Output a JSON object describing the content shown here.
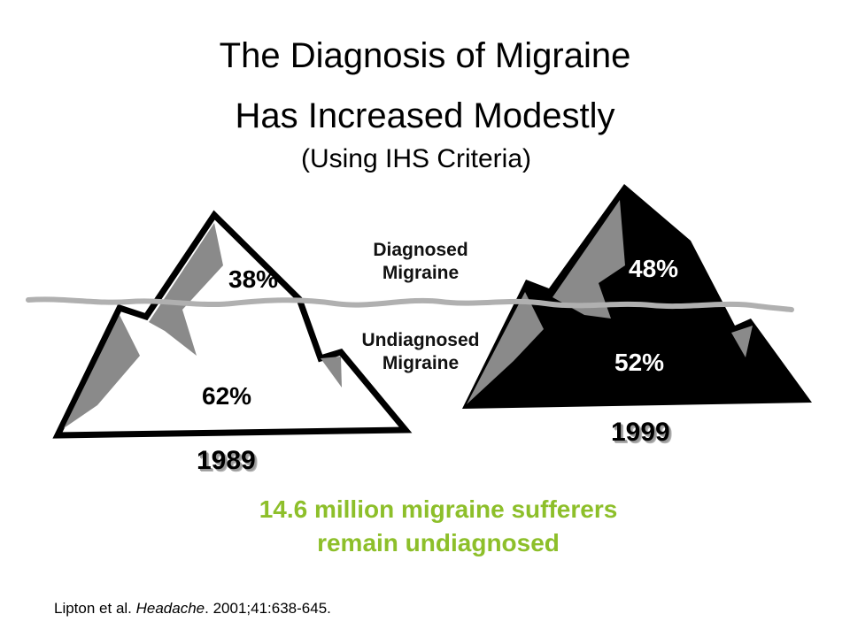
{
  "title": {
    "line1": "The Diagnosis of Migraine",
    "line2": "Has Increased Modestly",
    "subtitle": "(Using IHS Criteria)"
  },
  "labels": {
    "diagnosed": "Diagnosed\nMigraine",
    "undiagnosed": "Undiagnosed\nMigraine"
  },
  "icebergs": [
    {
      "year": "1989",
      "diagnosed_pct": "38%",
      "undiagnosed_pct": "62%",
      "fill_color": "#ffffff"
    },
    {
      "year": "1999",
      "diagnosed_pct": "48%",
      "undiagnosed_pct": "52%",
      "fill_color": "#000000"
    }
  ],
  "highlight": {
    "line1": "14.6 million migraine sufferers",
    "line2": "remain undiagnosed",
    "color": "#8dbf2a"
  },
  "citation": {
    "authors": "Lipton et al. ",
    "journal": "Headache",
    "details": ". 2001;41:638-645."
  },
  "colors": {
    "water_line": "#b0b0b0",
    "shading": "#8a8a8a"
  }
}
